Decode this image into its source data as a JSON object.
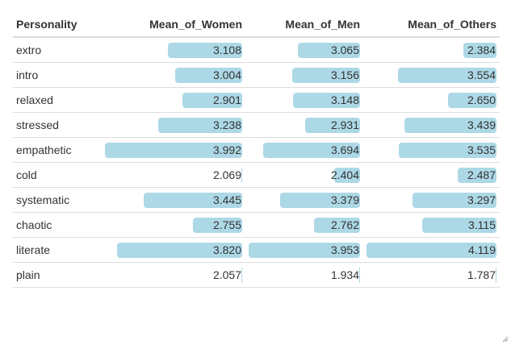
{
  "chart_data": {
    "type": "table",
    "columns": [
      "Personality",
      "Mean_of_Women",
      "Mean_of_Men",
      "Mean_of_Others"
    ],
    "rows": [
      {
        "label": "extro",
        "values": [
          "3.108",
          "3.065",
          "2.384"
        ]
      },
      {
        "label": "intro",
        "values": [
          "3.004",
          "3.156",
          "3.554"
        ]
      },
      {
        "label": "relaxed",
        "values": [
          "2.901",
          "3.148",
          "2.650"
        ]
      },
      {
        "label": "stressed",
        "values": [
          "3.238",
          "2.931",
          "3.439"
        ]
      },
      {
        "label": "empathetic",
        "values": [
          "3.992",
          "3.694",
          "3.535"
        ]
      },
      {
        "label": "cold",
        "values": [
          "2.069",
          "2.404",
          "2.487"
        ]
      },
      {
        "label": "systematic",
        "values": [
          "3.445",
          "3.379",
          "3.297"
        ]
      },
      {
        "label": "chaotic",
        "values": [
          "2.755",
          "2.762",
          "3.115"
        ]
      },
      {
        "label": "literate",
        "values": [
          "3.820",
          "3.953",
          "4.119"
        ]
      },
      {
        "label": "plain",
        "values": [
          "2.057",
          "1.934",
          "1.787"
        ]
      }
    ],
    "bar_color": "#add8e6"
  }
}
